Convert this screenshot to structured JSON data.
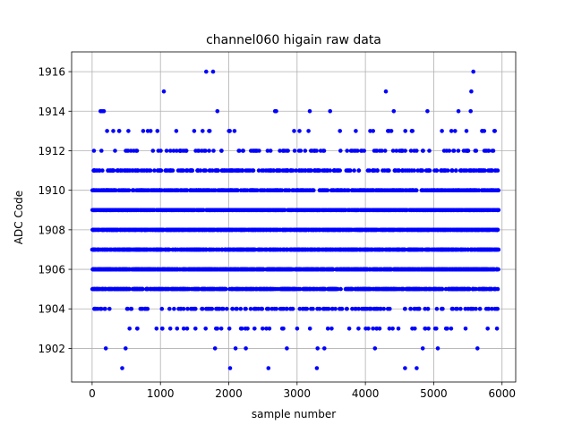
{
  "chart_data": {
    "type": "scatter",
    "title": "channel060 higain raw data",
    "xlabel": "sample number",
    "ylabel": "ADC Code",
    "xlim": [
      -300,
      6200
    ],
    "ylim": [
      1900.3,
      1917.0
    ],
    "xticks": [
      0,
      1000,
      2000,
      3000,
      4000,
      5000,
      6000
    ],
    "yticks": [
      1902,
      1904,
      1906,
      1908,
      1910,
      1912,
      1914,
      1916
    ],
    "grid": true,
    "marker_color": "#0000ff",
    "n_samples": 5950,
    "series": [
      {
        "level_counts": {
          "1901": 8,
          "1902": 20,
          "1903": 55,
          "1904": 180,
          "1905": 600,
          "1906": 1100,
          "1907": 1000,
          "1908": 1050,
          "1909": 900,
          "1910": 560,
          "1911": 300,
          "1912": 120,
          "1913": 40,
          "1914": 12,
          "1915": 3,
          "1916": 3
        },
        "rare_points": [
          [
            440,
            1901
          ],
          [
            2020,
            1901
          ],
          [
            2580,
            1901
          ],
          [
            3290,
            1901
          ],
          [
            4580,
            1901
          ],
          [
            4750,
            1901
          ],
          [
            200,
            1902
          ],
          [
            490,
            1902
          ],
          [
            1800,
            1902
          ],
          [
            2100,
            1902
          ],
          [
            2250,
            1902
          ],
          [
            2850,
            1902
          ],
          [
            3300,
            1902
          ],
          [
            3400,
            1902
          ],
          [
            4140,
            1902
          ],
          [
            4840,
            1902
          ],
          [
            5060,
            1902
          ],
          [
            5640,
            1902
          ],
          [
            1050,
            1915
          ],
          [
            4300,
            1915
          ],
          [
            5550,
            1915
          ],
          [
            1670,
            1916
          ],
          [
            1770,
            1916
          ],
          [
            5580,
            1916
          ]
        ]
      }
    ]
  }
}
